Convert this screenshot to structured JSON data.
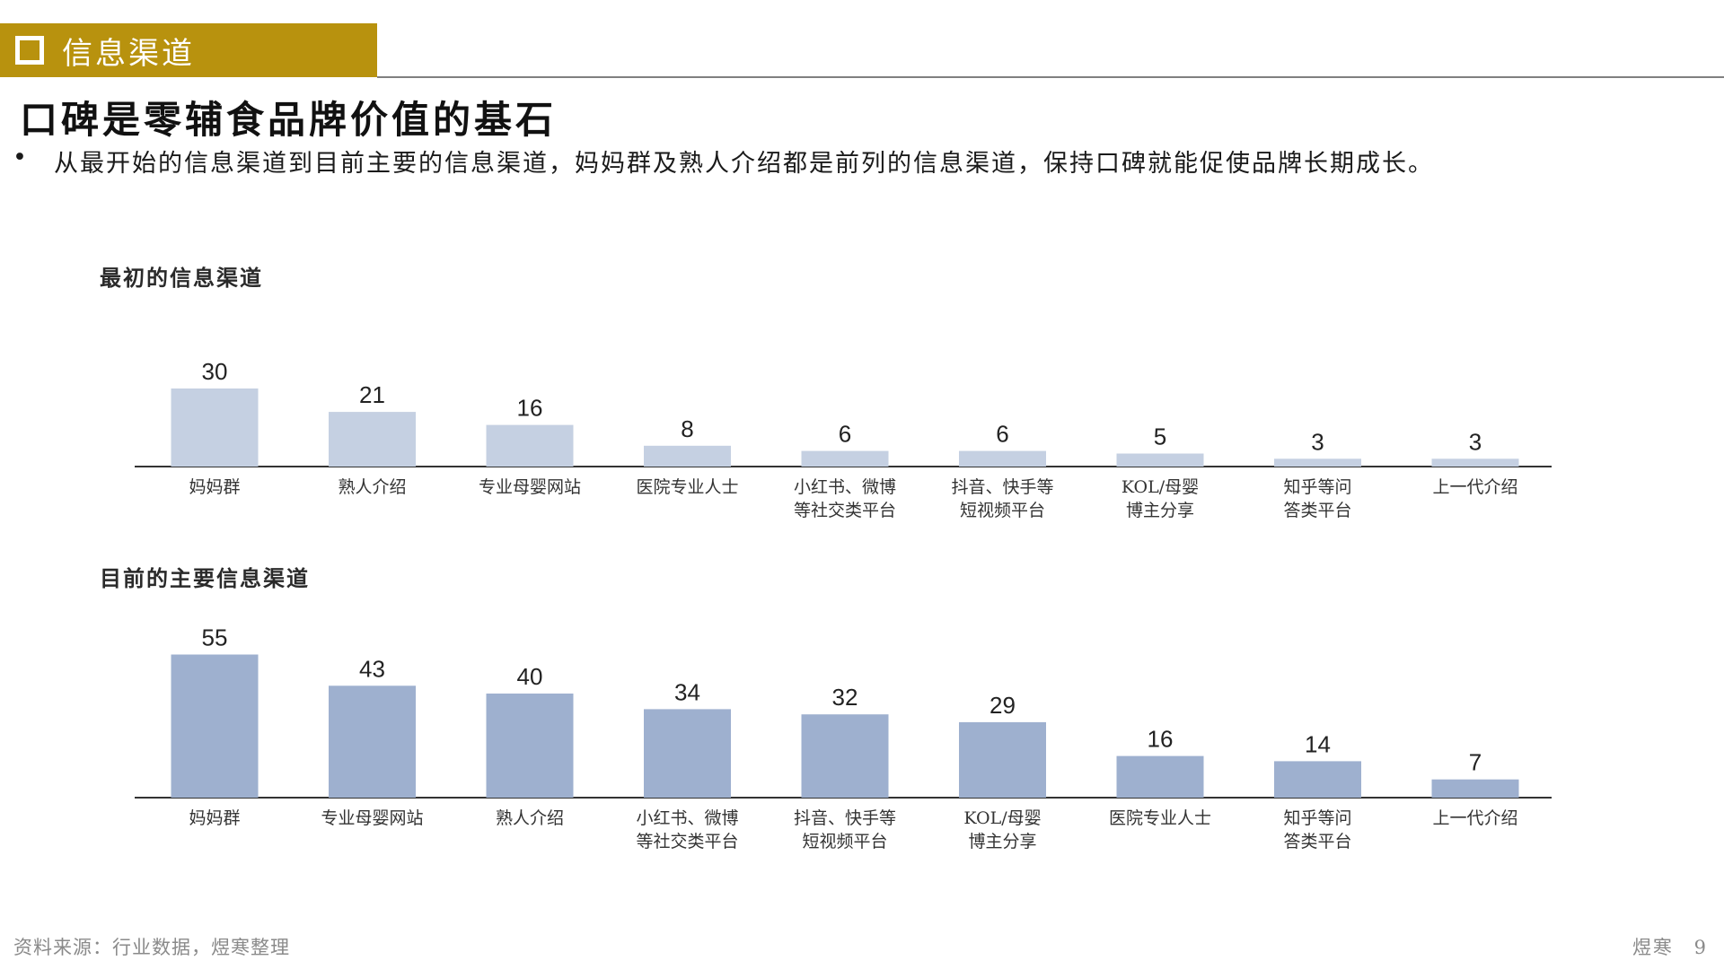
{
  "header": {
    "section_label": "信息渠道",
    "title": "口碑是零辅食品牌价值的基石",
    "bullet": "从最开始的信息渠道到目前主要的信息渠道，妈妈群及熟人介绍都是前列的信息渠道，保持口碑就能促使品牌长期成长。"
  },
  "colors": {
    "accent": "#b8920e",
    "bar_initial": "#c5d0e2",
    "bar_current": "#9eb0cf",
    "axis": "#333333"
  },
  "chart_data": [
    {
      "type": "bar",
      "title": "最初的信息渠道",
      "categories": [
        "妈妈群",
        "熟人介绍",
        "专业母婴网站",
        "医院专业人士",
        "小红书、微博\n等社交类平台",
        "抖音、快手等\n短视频平台",
        "KOL/母婴\n博主分享",
        "知乎等问\n答类平台",
        "上一代介绍"
      ],
      "values": [
        30,
        21,
        16,
        8,
        6,
        6,
        5,
        3,
        3
      ],
      "xlabel": "",
      "ylabel": "",
      "ylim": [
        0,
        60
      ],
      "grid": false,
      "legend": "none"
    },
    {
      "type": "bar",
      "title": "目前的主要信息渠道",
      "categories": [
        "妈妈群",
        "专业母婴网站",
        "熟人介绍",
        "小红书、微博\n等社交类平台",
        "抖音、快手等\n短视频平台",
        "KOL/母婴\n博主分享",
        "医院专业人士",
        "知乎等问\n答类平台",
        "上一代介绍"
      ],
      "values": [
        55,
        43,
        40,
        34,
        32,
        29,
        16,
        14,
        7
      ],
      "xlabel": "",
      "ylabel": "",
      "ylim": [
        0,
        60
      ],
      "grid": false,
      "legend": "none"
    }
  ],
  "footer": {
    "source": "资料来源：行业数据，煜寒整理",
    "brand": "煜寒",
    "page": "9"
  }
}
